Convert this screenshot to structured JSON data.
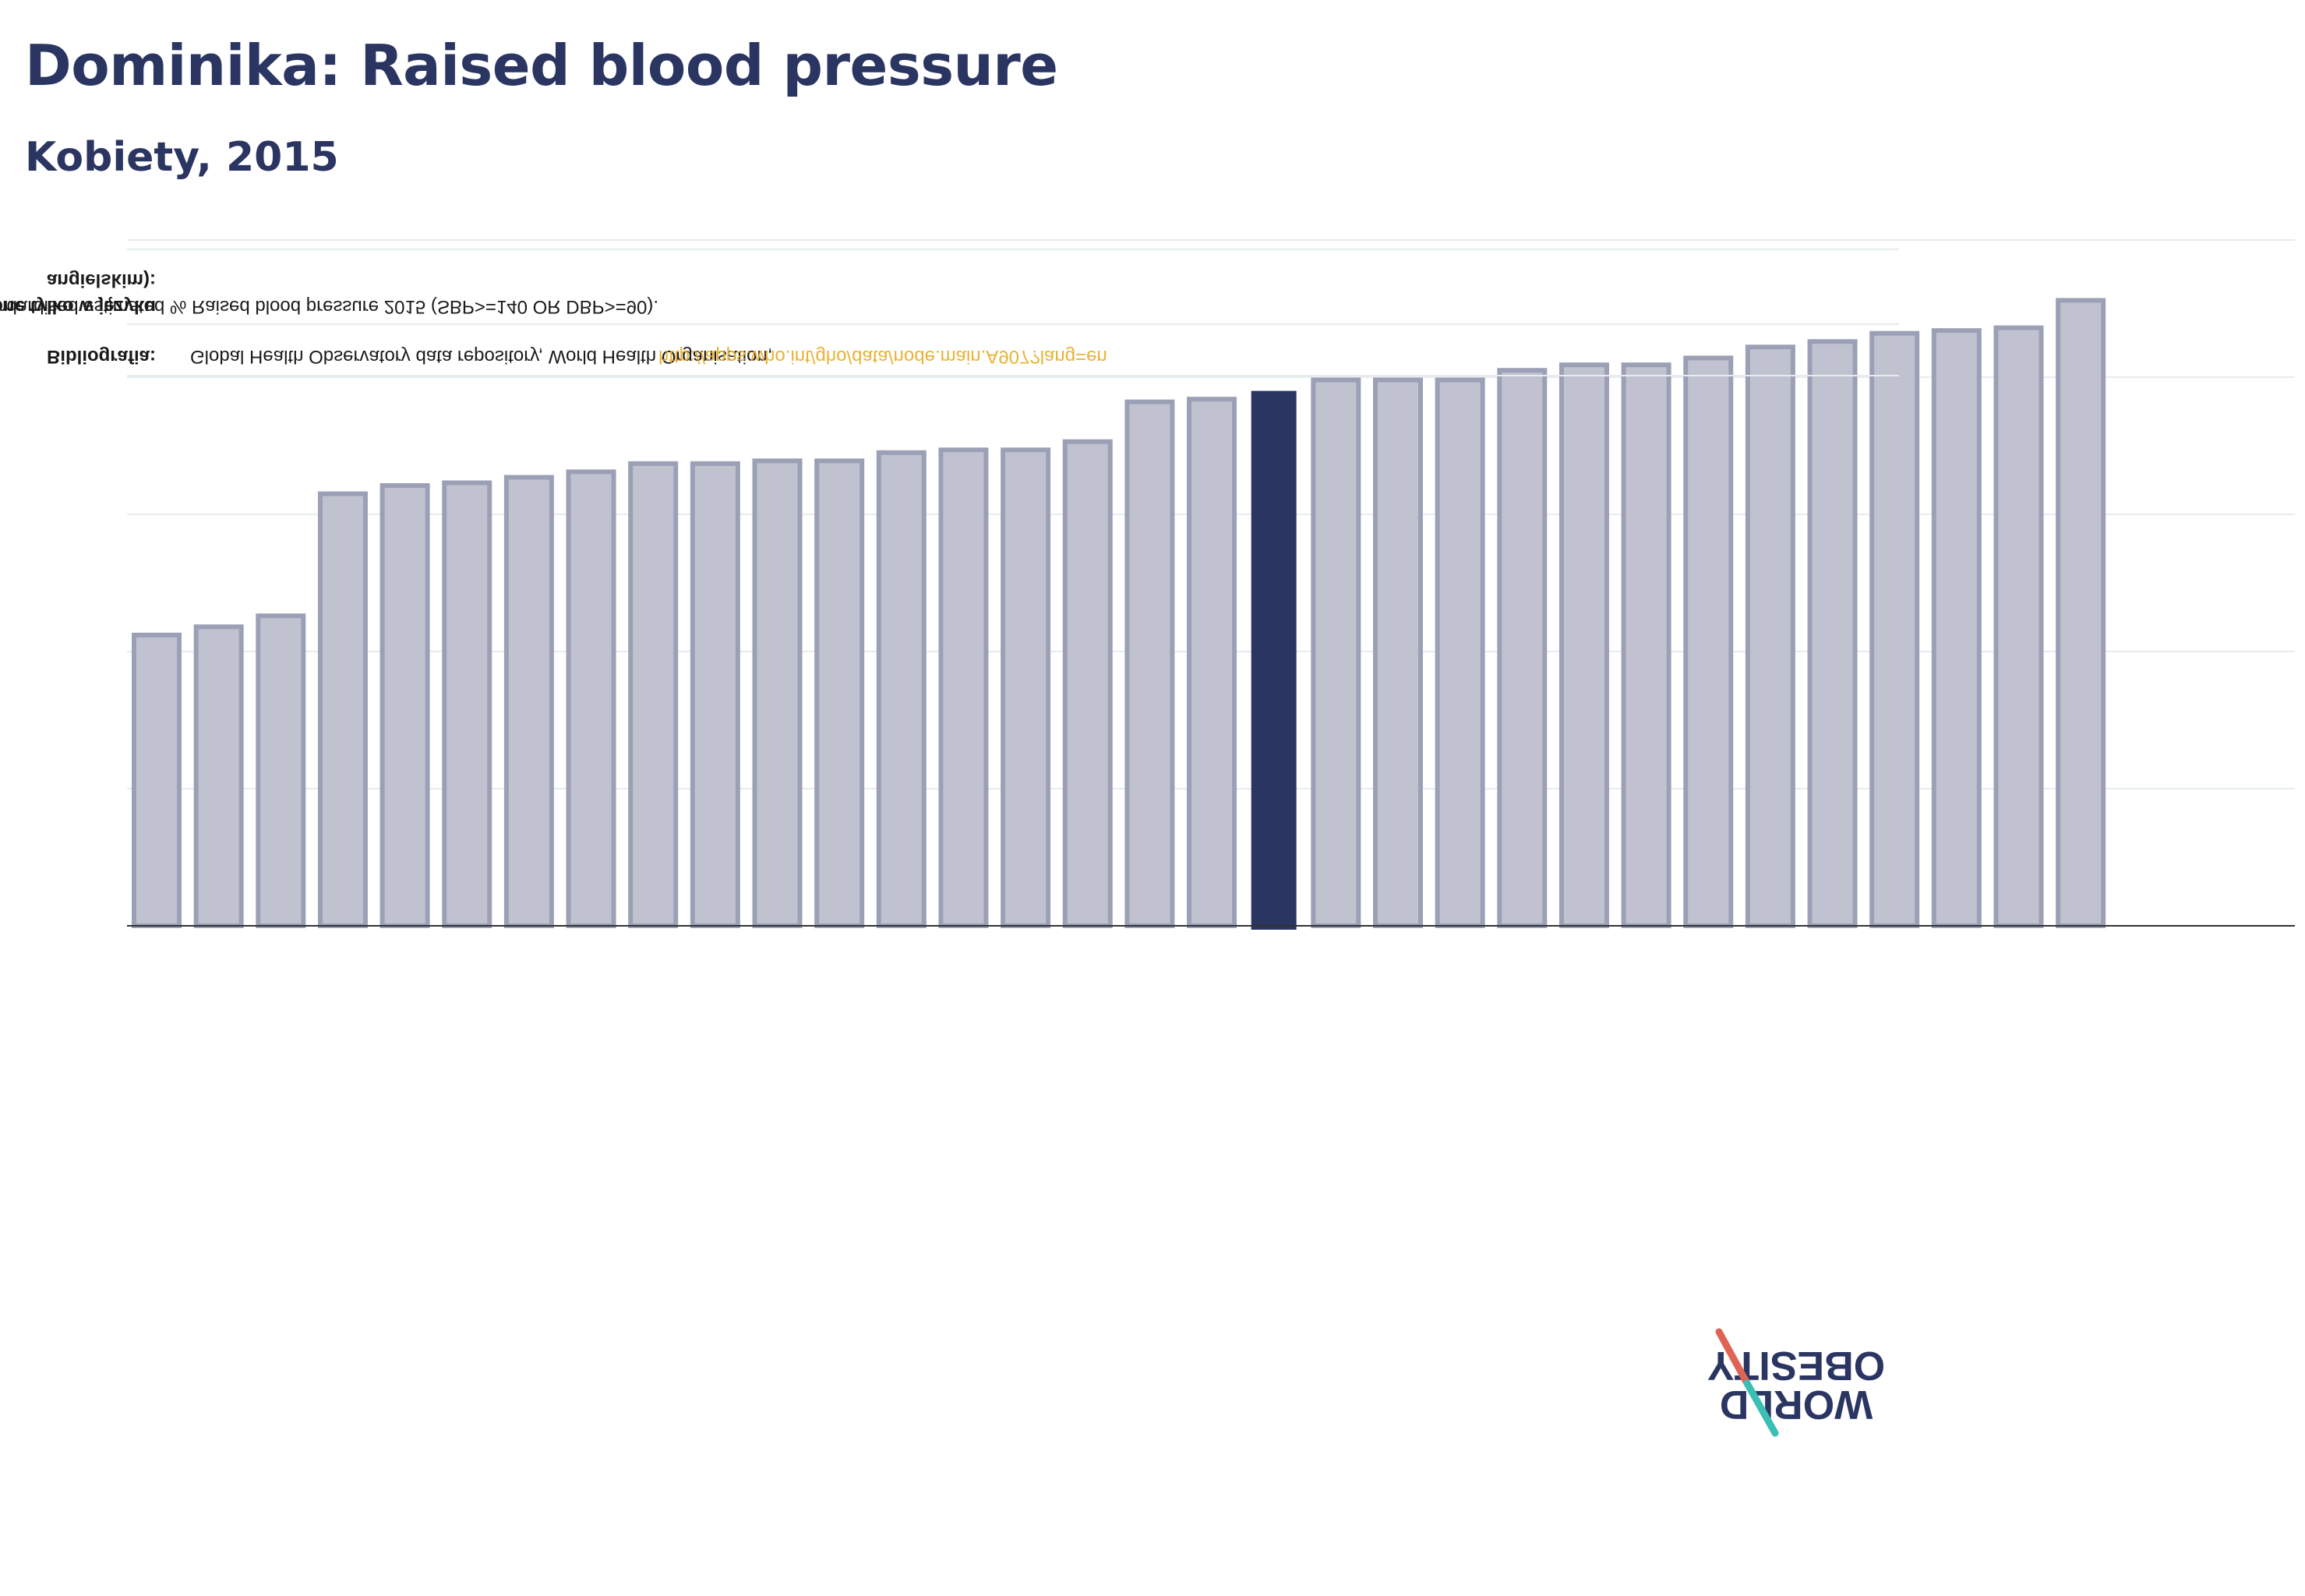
{
  "title": "Dominika: Raised blood pressure",
  "subtitle": "Kobiety, 2015",
  "colors": {
    "highlight": "#2b3561",
    "bar_fill": "#c0c3cf",
    "bar_stroke": "#9ba0b6",
    "link": "#e8b335",
    "text": "#1a1a1a",
    "logo_red": "#e06454",
    "logo_teal": "#3bbfb4"
  },
  "chart_data": {
    "type": "bar",
    "values": [
      21.2,
      21.8,
      22.6,
      31.5,
      32.1,
      32.3,
      32.7,
      33.1,
      33.7,
      33.7,
      33.9,
      33.9,
      34.5,
      34.7,
      34.7,
      35.3,
      38.2,
      38.4,
      39.0,
      39.8,
      39.8,
      39.8,
      40.5,
      40.9,
      40.9,
      41.4,
      42.2,
      42.6,
      43.2,
      43.4,
      43.6,
      45.6
    ],
    "highlight_index": 18,
    "ylim": [
      0,
      50
    ],
    "gridlines": [
      10,
      20,
      30,
      40,
      50
    ],
    "grid": true,
    "legend": "none"
  },
  "notes": {
    "bibliography_label": "Bibliografia:",
    "bibliography_text": "Global Health Observatory data repository, World Health Organisation,",
    "bibliography_link": "http://apps.who.int/gho/data/node.main.A907?lang=en",
    "definition_label_line1": "Definicje (dostępne tylko w języku",
    "definition_label_line2": "angielskim):",
    "definition_text": "Age Standardised estimated % Raised blood pressure 2015 (SBP>=140 OR DBP>=90)."
  },
  "logo": {
    "line1": "OBESITY",
    "line2": "WORLD",
    "icon": "obesity-logo-slash-icon"
  }
}
